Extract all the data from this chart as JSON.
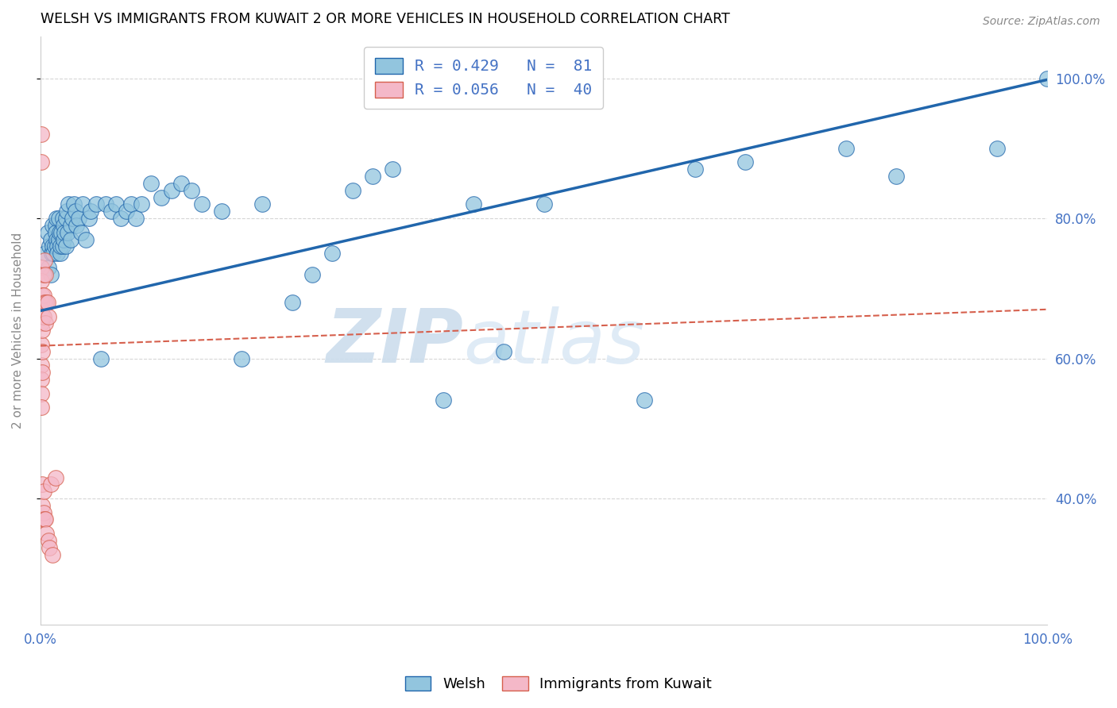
{
  "title": "WELSH VS IMMIGRANTS FROM KUWAIT 2 OR MORE VEHICLES IN HOUSEHOLD CORRELATION CHART",
  "source": "Source: ZipAtlas.com",
  "ylabel": "2 or more Vehicles in Household",
  "legend_blue_label": "Welsh",
  "legend_pink_label": "Immigrants from Kuwait",
  "legend_blue_r": "R = 0.429",
  "legend_blue_n": "N =  81",
  "legend_pink_r": "R = 0.056",
  "legend_pink_n": "N =  40",
  "blue_color": "#92c5de",
  "pink_color": "#f4b8c8",
  "blue_line_color": "#2166ac",
  "pink_line_color": "#d6604d",
  "axis_color": "#4472c4",
  "watermark_color": "#dce9f5",
  "ytick_values": [
    0.4,
    0.6,
    0.8,
    1.0
  ],
  "ytick_labels": [
    "40.0%",
    "60.0%",
    "80.0%",
    "100.0%"
  ],
  "xtick_values": [
    0.0,
    0.2,
    0.4,
    0.6,
    0.8,
    1.0
  ],
  "xtick_labels": [
    "0.0%",
    "",
    "",
    "",
    "",
    "100.0%"
  ],
  "xlim": [
    0.0,
    1.0
  ],
  "ylim": [
    0.22,
    1.06
  ],
  "blue_x": [
    0.005,
    0.007,
    0.008,
    0.009,
    0.01,
    0.01,
    0.011,
    0.012,
    0.012,
    0.013,
    0.014,
    0.015,
    0.015,
    0.016,
    0.016,
    0.017,
    0.017,
    0.018,
    0.018,
    0.019,
    0.02,
    0.02,
    0.021,
    0.022,
    0.022,
    0.023,
    0.023,
    0.024,
    0.025,
    0.025,
    0.026,
    0.027,
    0.028,
    0.03,
    0.03,
    0.032,
    0.033,
    0.035,
    0.036,
    0.038,
    0.04,
    0.042,
    0.045,
    0.048,
    0.05,
    0.055,
    0.06,
    0.065,
    0.07,
    0.075,
    0.08,
    0.085,
    0.09,
    0.095,
    0.1,
    0.11,
    0.12,
    0.13,
    0.14,
    0.15,
    0.16,
    0.18,
    0.2,
    0.22,
    0.25,
    0.27,
    0.29,
    0.31,
    0.33,
    0.35,
    0.4,
    0.43,
    0.46,
    0.5,
    0.6,
    0.65,
    0.7,
    0.8,
    0.85,
    0.95,
    1.0
  ],
  "blue_y": [
    0.75,
    0.78,
    0.73,
    0.76,
    0.77,
    0.72,
    0.75,
    0.79,
    0.76,
    0.75,
    0.76,
    0.79,
    0.78,
    0.77,
    0.8,
    0.76,
    0.75,
    0.77,
    0.8,
    0.78,
    0.75,
    0.76,
    0.78,
    0.8,
    0.76,
    0.79,
    0.77,
    0.78,
    0.8,
    0.76,
    0.81,
    0.78,
    0.82,
    0.79,
    0.77,
    0.8,
    0.82,
    0.81,
    0.79,
    0.8,
    0.78,
    0.82,
    0.77,
    0.8,
    0.81,
    0.82,
    0.6,
    0.82,
    0.81,
    0.82,
    0.8,
    0.81,
    0.82,
    0.8,
    0.82,
    0.85,
    0.83,
    0.84,
    0.85,
    0.84,
    0.82,
    0.81,
    0.6,
    0.82,
    0.68,
    0.72,
    0.75,
    0.84,
    0.86,
    0.87,
    0.54,
    0.82,
    0.61,
    0.82,
    0.54,
    0.87,
    0.88,
    0.9,
    0.86,
    0.9,
    1.0
  ],
  "pink_x": [
    0.001,
    0.001,
    0.001,
    0.001,
    0.001,
    0.001,
    0.001,
    0.001,
    0.001,
    0.001,
    0.001,
    0.001,
    0.002,
    0.002,
    0.002,
    0.002,
    0.002,
    0.002,
    0.002,
    0.002,
    0.003,
    0.003,
    0.003,
    0.003,
    0.003,
    0.004,
    0.004,
    0.004,
    0.005,
    0.005,
    0.005,
    0.006,
    0.006,
    0.007,
    0.008,
    0.008,
    0.009,
    0.01,
    0.012,
    0.015
  ],
  "pink_y": [
    0.92,
    0.88,
    0.73,
    0.71,
    0.68,
    0.67,
    0.65,
    0.62,
    0.59,
    0.57,
    0.55,
    0.53,
    0.69,
    0.66,
    0.64,
    0.61,
    0.58,
    0.42,
    0.39,
    0.37,
    0.72,
    0.69,
    0.66,
    0.41,
    0.38,
    0.74,
    0.68,
    0.37,
    0.72,
    0.65,
    0.37,
    0.68,
    0.35,
    0.68,
    0.66,
    0.34,
    0.33,
    0.42,
    0.32,
    0.43
  ],
  "blue_regression": [
    0.668,
    0.998
  ],
  "pink_regression": [
    0.618,
    0.67
  ]
}
